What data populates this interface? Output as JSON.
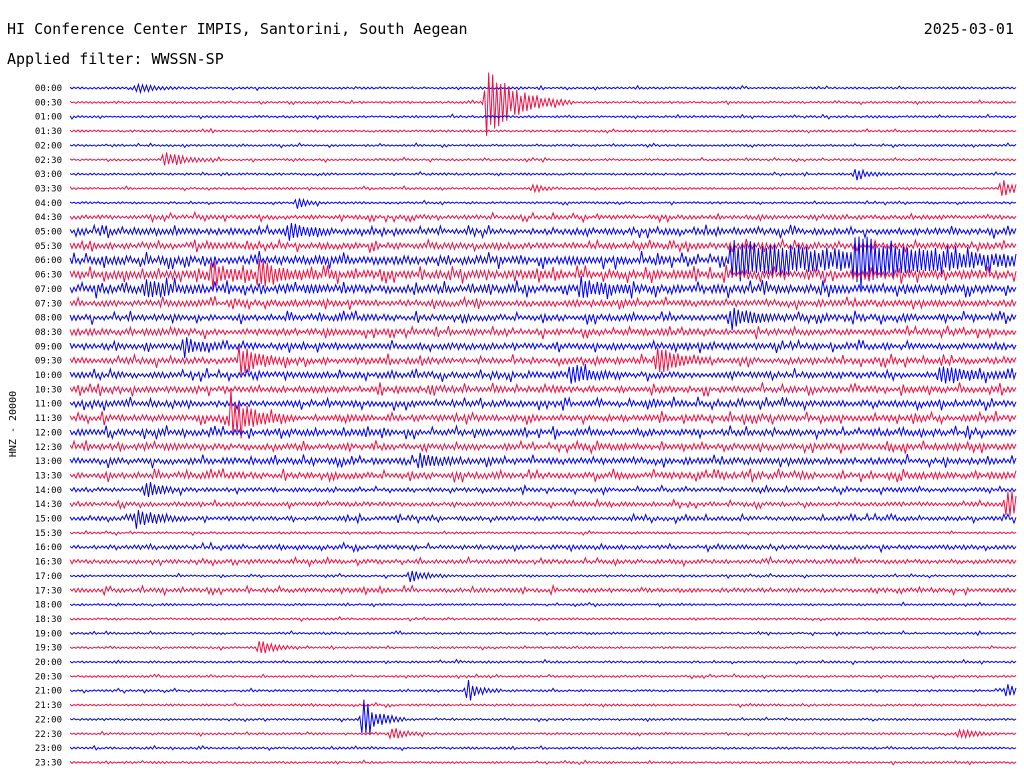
{
  "header": {
    "station": "HI Conference Center IMPIS, Santorini, South Aegean",
    "date": "2025-03-01",
    "filter": "Applied filter: WWSSN-SP"
  },
  "chart_data": {
    "type": "line",
    "kind": "helicorder",
    "ylabel": "HNZ - 20000",
    "rows": [
      "00:00",
      "00:30",
      "01:00",
      "01:30",
      "02:00",
      "02:30",
      "03:00",
      "03:30",
      "04:00",
      "04:30",
      "05:00",
      "05:30",
      "06:00",
      "06:30",
      "07:00",
      "07:30",
      "08:00",
      "08:30",
      "09:00",
      "09:30",
      "10:00",
      "10:30",
      "11:00",
      "11:30",
      "12:00",
      "12:30",
      "13:00",
      "13:30",
      "14:00",
      "14:30",
      "15:00",
      "15:30",
      "16:00",
      "16:30",
      "17:00",
      "17:30",
      "18:00",
      "18:30",
      "19:00",
      "19:30",
      "20:00",
      "20:30",
      "21:00",
      "21:30",
      "22:00",
      "22:30",
      "23:00",
      "23:30"
    ],
    "trace_colors": [
      "#0000ee",
      "#ee1144"
    ],
    "row_activity": [
      1,
      1,
      1,
      1,
      1,
      1,
      1,
      1,
      1,
      2,
      3,
      3,
      4,
      4,
      4,
      3,
      3,
      3,
      3,
      3,
      3,
      3,
      3,
      3,
      3,
      3,
      3,
      3,
      2,
      2,
      2,
      1,
      2,
      2,
      1,
      2,
      1,
      1,
      1,
      1,
      1,
      1,
      1,
      1,
      1,
      1,
      1,
      1
    ],
    "events": [
      {
        "row": 0,
        "time": 0.07,
        "amp": 4,
        "dur": 0.02
      },
      {
        "row": 1,
        "time": 0.44,
        "amp": 38,
        "dur": 0.03
      },
      {
        "row": 5,
        "time": 0.1,
        "amp": 9,
        "dur": 0.02
      },
      {
        "row": 6,
        "time": 0.83,
        "amp": 7,
        "dur": 0.015
      },
      {
        "row": 7,
        "time": 0.49,
        "amp": 5,
        "dur": 0.01
      },
      {
        "row": 7,
        "time": 0.985,
        "amp": 9,
        "dur": 0.015
      },
      {
        "row": 8,
        "time": 0.24,
        "amp": 6,
        "dur": 0.01
      },
      {
        "row": 10,
        "time": 0.23,
        "amp": 8,
        "dur": 0.02
      },
      {
        "row": 12,
        "time": 0.7,
        "amp": 20,
        "dur": 0.12
      },
      {
        "row": 12,
        "time": 0.83,
        "amp": 22,
        "dur": 0.06
      },
      {
        "row": 13,
        "time": 0.15,
        "amp": 12,
        "dur": 0.02
      },
      {
        "row": 13,
        "time": 0.2,
        "amp": 14,
        "dur": 0.02
      },
      {
        "row": 14,
        "time": 0.08,
        "amp": 10,
        "dur": 0.02
      },
      {
        "row": 14,
        "time": 0.54,
        "amp": 10,
        "dur": 0.02
      },
      {
        "row": 16,
        "time": 0.7,
        "amp": 12,
        "dur": 0.02
      },
      {
        "row": 18,
        "time": 0.12,
        "amp": 10,
        "dur": 0.015
      },
      {
        "row": 19,
        "time": 0.18,
        "amp": 14,
        "dur": 0.02
      },
      {
        "row": 19,
        "time": 0.62,
        "amp": 16,
        "dur": 0.02
      },
      {
        "row": 20,
        "time": 0.53,
        "amp": 10,
        "dur": 0.02
      },
      {
        "row": 20,
        "time": 0.92,
        "amp": 10,
        "dur": 0.03
      },
      {
        "row": 23,
        "time": 0.17,
        "amp": 26,
        "dur": 0.02
      },
      {
        "row": 26,
        "time": 0.37,
        "amp": 8,
        "dur": 0.015
      },
      {
        "row": 28,
        "time": 0.08,
        "amp": 9,
        "dur": 0.015
      },
      {
        "row": 29,
        "time": 0.99,
        "amp": 18,
        "dur": 0.02
      },
      {
        "row": 30,
        "time": 0.07,
        "amp": 9,
        "dur": 0.02
      },
      {
        "row": 34,
        "time": 0.36,
        "amp": 7,
        "dur": 0.015
      },
      {
        "row": 39,
        "time": 0.2,
        "amp": 8,
        "dur": 0.015
      },
      {
        "row": 42,
        "time": 0.42,
        "amp": 12,
        "dur": 0.012
      },
      {
        "row": 42,
        "time": 0.99,
        "amp": 8,
        "dur": 0.01
      },
      {
        "row": 44,
        "time": 0.31,
        "amp": 22,
        "dur": 0.015
      },
      {
        "row": 45,
        "time": 0.34,
        "amp": 8,
        "dur": 0.012
      },
      {
        "row": 45,
        "time": 0.94,
        "amp": 6,
        "dur": 0.015
      }
    ]
  }
}
